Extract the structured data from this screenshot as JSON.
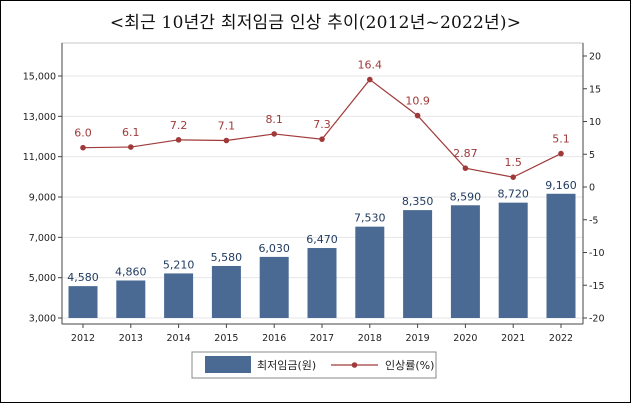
{
  "title": "<최근 10년간 최저임금 인상 추이(2012년~2022년)>",
  "colors": {
    "bar": "#4a6a93",
    "line": "#a03a3a",
    "plot_bg": "#ffffff",
    "grid": "#e6e6e6"
  },
  "chart_data": {
    "type": "bar+line",
    "categories": [
      "2012",
      "2013",
      "2014",
      "2015",
      "2016",
      "2017",
      "2018",
      "2019",
      "2020",
      "2021",
      "2022"
    ],
    "series": [
      {
        "name": "최저임금(원)",
        "type": "bar",
        "axis": "left",
        "values": [
          4580,
          4860,
          5210,
          5580,
          6030,
          6470,
          7530,
          8350,
          8590,
          8720,
          9160
        ],
        "labels": [
          "4,580",
          "4,860",
          "5,210",
          "5,580",
          "6,030",
          "6,470",
          "7,530",
          "8,350",
          "8,590",
          "8,720",
          "9,160"
        ]
      },
      {
        "name": "인상률(%)",
        "type": "line",
        "axis": "right",
        "values": [
          6.0,
          6.1,
          7.2,
          7.1,
          8.1,
          7.3,
          16.4,
          10.9,
          2.87,
          1.5,
          5.1
        ],
        "labels": [
          "6.0",
          "6.1",
          "7.2",
          "7.1",
          "8.1",
          "7.3",
          "16.4",
          "10.9",
          "2.87",
          "1.5",
          "5.1"
        ]
      }
    ],
    "y_left": {
      "min": 3000,
      "max": 16000,
      "ticks": [
        3000,
        5000,
        7000,
        9000,
        11000,
        13000,
        15000
      ],
      "tick_labels": [
        "3,000",
        "5,000",
        "7,000",
        "9,000",
        "11,000",
        "13,000",
        "15,000"
      ]
    },
    "y_right": {
      "min": -20,
      "max": 20,
      "ticks": [
        -20,
        -15,
        -10,
        -5,
        0,
        5,
        10,
        15,
        20
      ],
      "tick_labels": [
        "-20",
        "-15",
        "-10",
        "-5",
        "0",
        "5",
        "10",
        "15",
        "20"
      ]
    },
    "legend": {
      "position": "bottom",
      "items": [
        "최저임금(원)",
        "인상률(%)"
      ]
    }
  }
}
